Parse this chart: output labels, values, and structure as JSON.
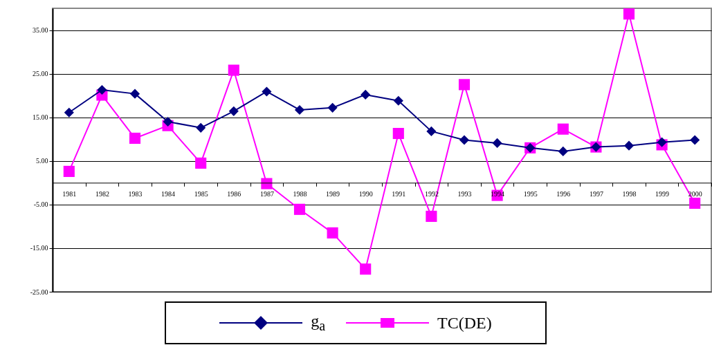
{
  "chart_data": {
    "type": "line",
    "categories": [
      "1981",
      "1982",
      "1983",
      "1984",
      "1985",
      "1986",
      "1987",
      "1988",
      "1989",
      "1990",
      "1991",
      "1992",
      "1993",
      "1994",
      "1995",
      "1996",
      "1997",
      "1998",
      "1999",
      "2000"
    ],
    "series": [
      {
        "name": "g$_{a}$",
        "color": "#000080",
        "marker": "diamond",
        "values": [
          16.1,
          21.3,
          20.4,
          14.0,
          12.6,
          16.4,
          20.9,
          16.7,
          17.2,
          20.2,
          18.8,
          11.8,
          9.8,
          9.1,
          8.0,
          7.2,
          8.2,
          8.5,
          9.3,
          9.8
        ]
      },
      {
        "name": "TC(DE)",
        "color": "#ff00ff",
        "marker": "square",
        "values": [
          2.6,
          20.1,
          10.2,
          13.1,
          4.5,
          25.8,
          -0.2,
          -6.1,
          -11.5,
          -19.8,
          11.3,
          -7.7,
          22.5,
          -2.9,
          8.0,
          12.3,
          8.2,
          38.7,
          8.7,
          -4.7
        ]
      }
    ],
    "ylim": [
      -25,
      40
    ],
    "yticks": [
      {
        "value": -25,
        "label": "-25.00"
      },
      {
        "value": -15,
        "label": "-15.00"
      },
      {
        "value": -5,
        "label": "-5.00"
      },
      {
        "value": 5,
        "label": "5.00"
      },
      {
        "value": 15,
        "label": "15.00"
      },
      {
        "value": 25,
        "label": "25.00"
      },
      {
        "value": 35,
        "label": "35.00"
      }
    ],
    "grid": "y",
    "legend": "bottom"
  }
}
